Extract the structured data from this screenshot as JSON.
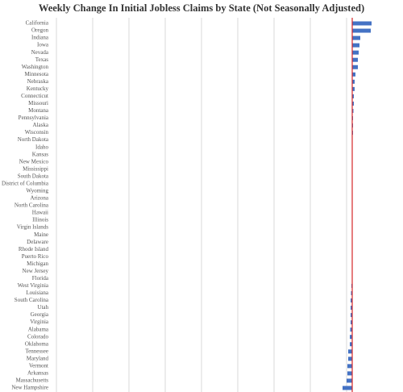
{
  "chart_data": {
    "type": "barh",
    "title": "Weekly Change In Initial Jobless Claims by State (Not Seasonally Adjusted)",
    "categories": [
      "California",
      "Oregon",
      "Indiana",
      "Iowa",
      "Nevada",
      "Texas",
      "Washington",
      "Minnesota",
      "Nebraska",
      "Kentucky",
      "Connecticut",
      "Missouri",
      "Montana",
      "Pennsylvania",
      "Alaska",
      "Wisconsin",
      "North Dakota",
      "Idaho",
      "Kansas",
      "New Mexico",
      "Mississippi",
      "South Dakota",
      "District of Columbia",
      "Wyoming",
      "Arizona",
      "North Carolina",
      "Hawaii",
      "Illinois",
      "Virgin Islands",
      "Maine",
      "Delaware",
      "Rhode Island",
      "Puerto Rico",
      "Michigan",
      "New Jersey",
      "Florida",
      "West Virginia",
      "Louisiana",
      "South Carolina",
      "Utah",
      "Georgia",
      "Virginia",
      "Alabama",
      "Colorado",
      "Oklahoma",
      "Tennessee",
      "Maryland",
      "Vermont",
      "Arkansas",
      "Massachusetts",
      "New Hampshire"
    ],
    "values": [
      24,
      23,
      10,
      9,
      8,
      7,
      7,
      4,
      3,
      3,
      2,
      2,
      1.5,
      1,
      1,
      1,
      0.5,
      0.5,
      0.5,
      0.5,
      0.3,
      0.3,
      0.2,
      0.2,
      0.1,
      0.1,
      0,
      0,
      0,
      0,
      0,
      0,
      0,
      -0.3,
      -0.5,
      -0.5,
      -1,
      -1.5,
      -2,
      -2,
      -2,
      -2,
      -2.5,
      -3,
      -3,
      -5,
      -5,
      -6,
      -6,
      -7,
      -12
    ],
    "color": "#4472c4",
    "zero_line_color": "#d62728",
    "xlim": [
      -369,
      53
    ]
  }
}
